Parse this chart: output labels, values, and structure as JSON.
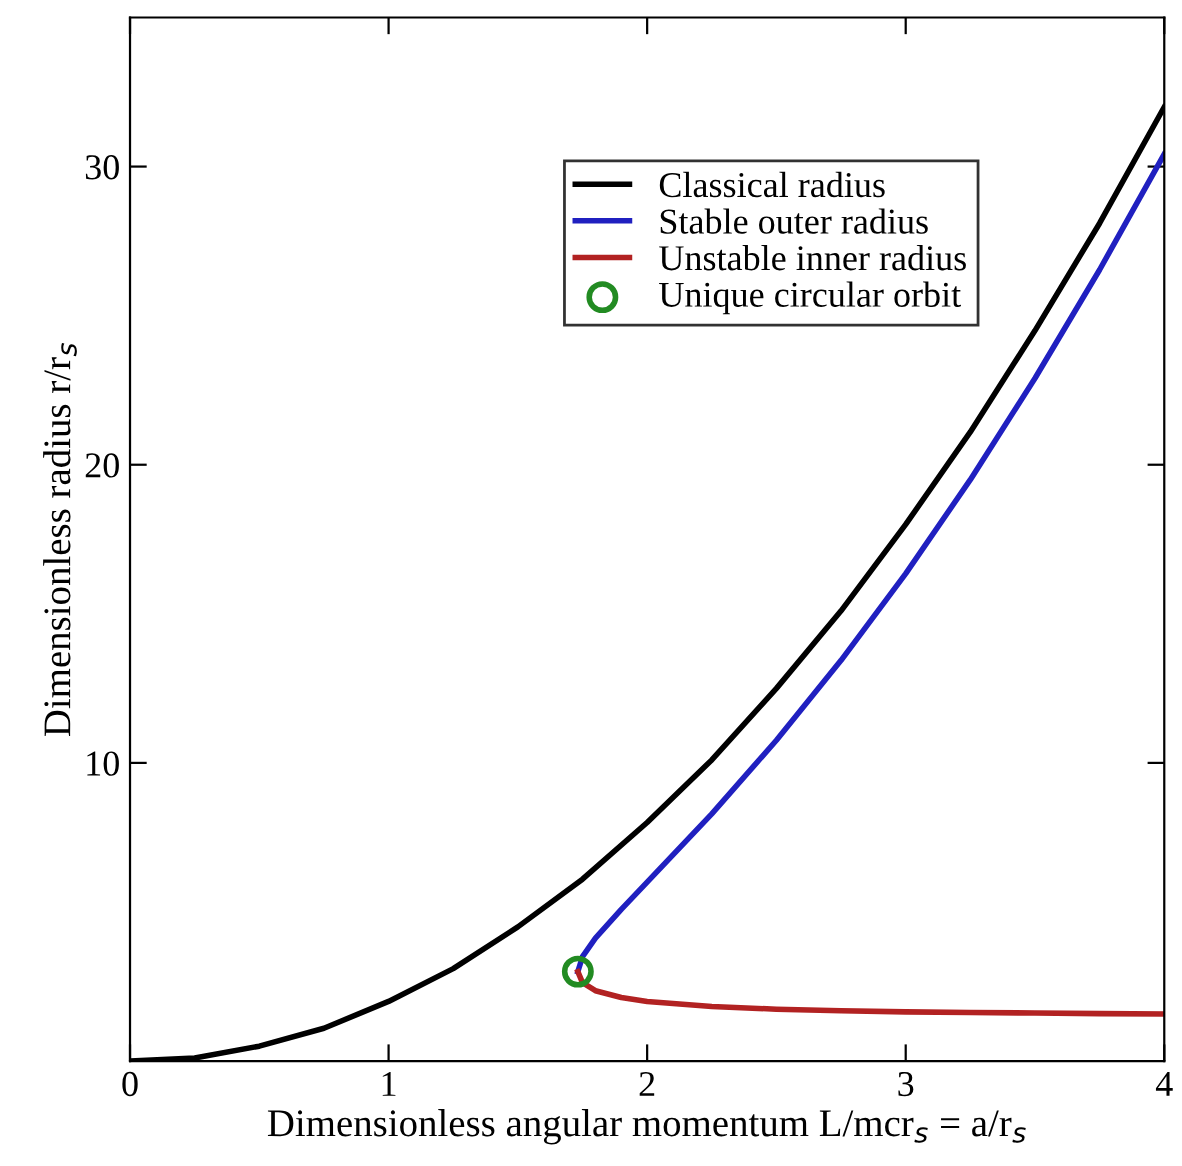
{
  "chart_data": {
    "type": "line",
    "xlabel": "Dimensionless angular momentum L/mcr$_{s}$ = a/r$_{s}$",
    "ylabel": "Dimensionless radius r/r$_{s}$",
    "xlim": [
      0,
      4
    ],
    "ylim": [
      0,
      35
    ],
    "xticks": [
      0,
      1,
      2,
      3,
      4
    ],
    "yticks": [
      10,
      20,
      30
    ],
    "grid": false,
    "legend": "top",
    "marker": "none",
    "line_style": "solid",
    "series": [
      {
        "name": "Classical radius",
        "color": "#000000",
        "x": [
          0,
          0.25,
          0.5,
          0.75,
          1,
          1.25,
          1.5,
          1.75,
          2,
          2.25,
          2.5,
          2.75,
          3,
          3.25,
          3.5,
          3.75,
          4
        ],
        "values": [
          0,
          0.1,
          0.5,
          1.1,
          2,
          3.1,
          4.5,
          6.1,
          8,
          10.1,
          12.5,
          15.1,
          18,
          21.1,
          24.5,
          28.1,
          32
        ]
      },
      {
        "name": "Stable outer radius",
        "color": "#2020c0",
        "x": [
          1.732,
          1.75,
          1.8,
          1.9,
          2,
          2.25,
          2.5,
          2.75,
          3,
          3.25,
          3.5,
          3.75,
          4
        ],
        "values": [
          3,
          3.5,
          4.12,
          5.09,
          6,
          8.29,
          10.76,
          13.44,
          16.35,
          19.5,
          22.9,
          26.54,
          30.42
        ]
      },
      {
        "name": "Unstable inner radius",
        "color": "#b22222",
        "x": [
          1.732,
          1.75,
          1.8,
          1.9,
          2,
          2.25,
          2.5,
          2.75,
          3,
          3.25,
          3.5,
          3.75,
          4
        ],
        "values": [
          3,
          2.63,
          2.36,
          2.13,
          2,
          1.83,
          1.74,
          1.69,
          1.65,
          1.63,
          1.61,
          1.59,
          1.58
        ]
      },
      {
        "name": "Unique circular orbit",
        "type": "scatter",
        "marker": "circle",
        "color": "#228b22",
        "x": [
          1.732
        ],
        "values": [
          3
        ]
      }
    ]
  }
}
